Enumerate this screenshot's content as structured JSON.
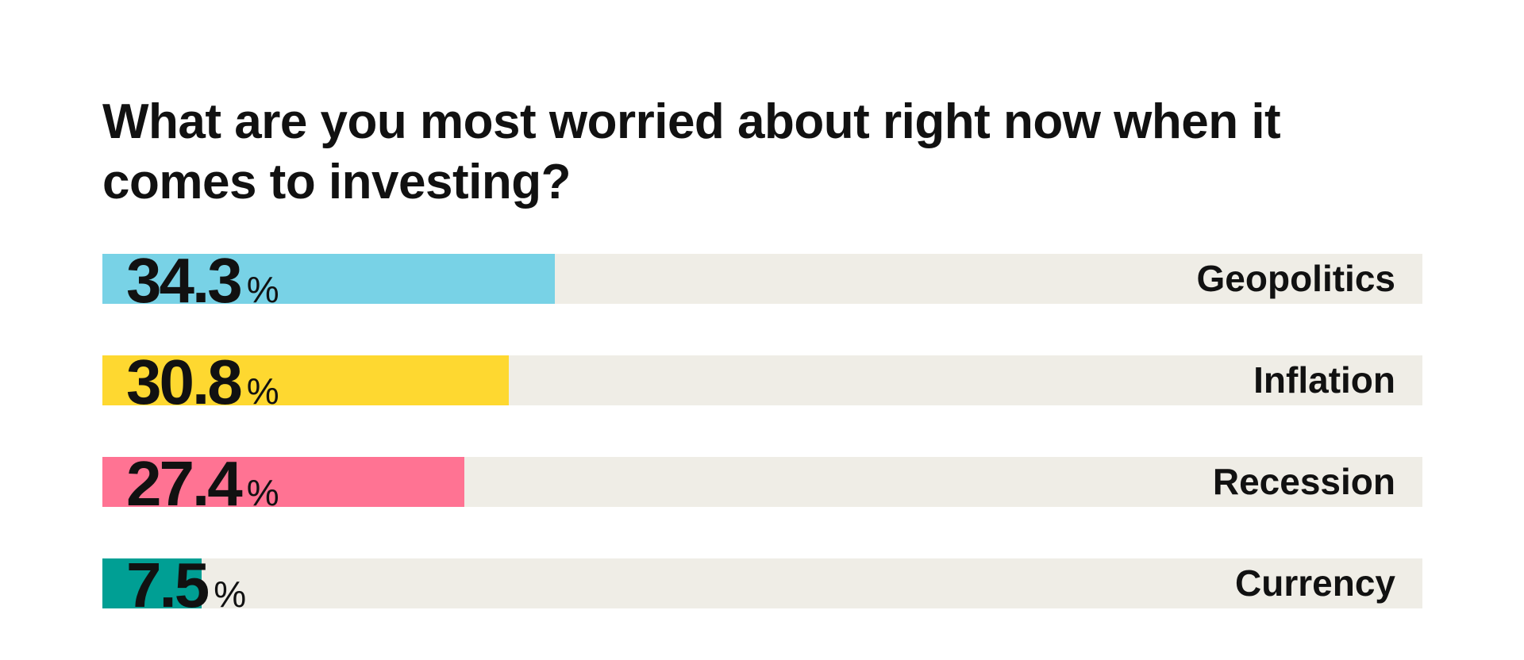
{
  "chart_data": {
    "type": "bar",
    "title": "What are you most worried about right now when it comes to investing?",
    "categories": [
      "Geopolitics",
      "Inflation",
      "Recession",
      "Currency"
    ],
    "values": [
      34.3,
      30.8,
      27.4,
      7.5
    ],
    "value_labels": [
      "34.3",
      "30.8",
      "27.4",
      "7.5"
    ],
    "unit": "%",
    "colors": [
      "#78d2e6",
      "#fed830",
      "#ff7393",
      "#009f94"
    ],
    "track_color": "#efede6",
    "xlim": [
      0,
      100
    ],
    "orientation": "horizontal",
    "xlabel": "",
    "ylabel": ""
  }
}
